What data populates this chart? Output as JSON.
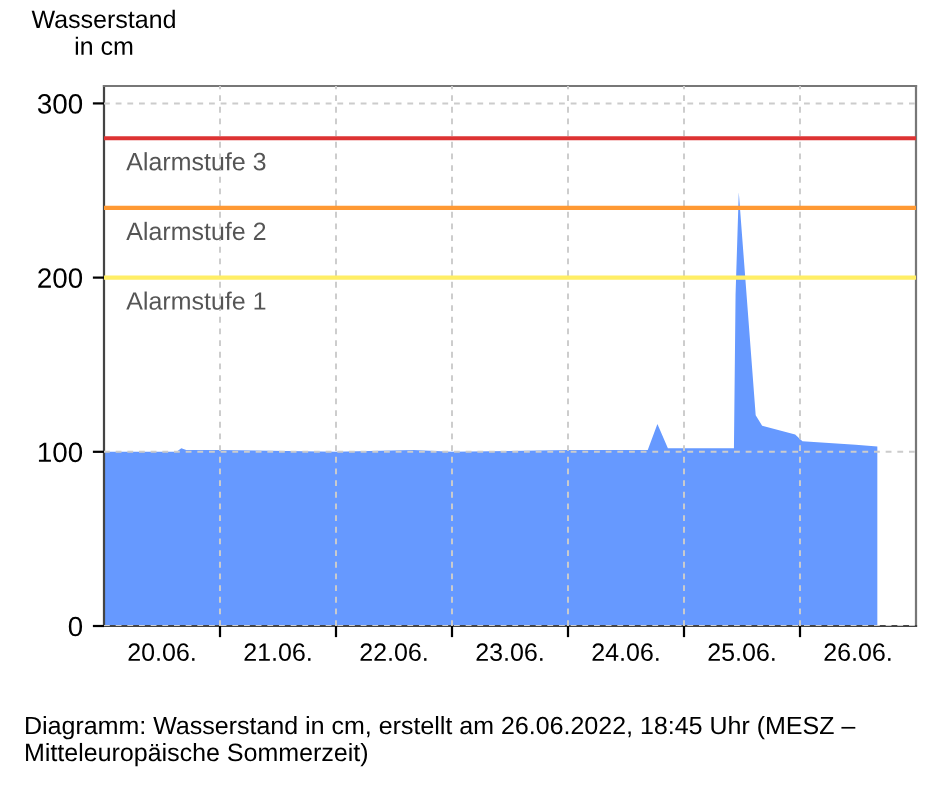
{
  "chart_data": {
    "type": "area",
    "ylabel": "Wasserstand\nin cm",
    "annotations": [
      "Diagramm: Wasserstand in cm, erstellt am 26.06.2022, 18:45 Uhr (MESZ – Mitteleuropäische Sommerzeit)"
    ],
    "x": [
      "2022-06-20T00:00",
      "2022-06-20T15:00",
      "2022-06-20T16:00",
      "2022-06-20T17:00",
      "2022-06-21T00:00",
      "2022-06-22T00:00",
      "2022-06-22T16:00",
      "2022-06-23T00:00",
      "2022-06-24T00:00",
      "2022-06-24T16:30",
      "2022-06-24T18:30",
      "2022-06-24T20:40",
      "2022-06-25T00:00",
      "2022-06-25T10:20",
      "2022-06-25T10:40",
      "2022-06-25T11:20",
      "2022-06-25T14:50",
      "2022-06-25T16:10",
      "2022-06-25T23:00",
      "2022-06-26T00:30",
      "2022-06-26T11:30",
      "2022-06-26T16:00"
    ],
    "series": [
      {
        "color": "#6699ff",
        "values": [
          100,
          100,
          102,
          101,
          101,
          100,
          101,
          100,
          101,
          101,
          116,
          102,
          102,
          102,
          190,
          249,
          121,
          115,
          110,
          106,
          104,
          103
        ]
      }
    ],
    "xlim": [
      "2022-06-20T00:00",
      "2022-06-27T00:00"
    ],
    "xticks": [
      {
        "value": "2022-06-20T12:00",
        "label": "20.06."
      },
      {
        "value": "2022-06-21T12:00",
        "label": "21.06."
      },
      {
        "value": "2022-06-22T12:00",
        "label": "22.06."
      },
      {
        "value": "2022-06-23T12:00",
        "label": "23.06."
      },
      {
        "value": "2022-06-24T12:00",
        "label": "24.06."
      },
      {
        "value": "2022-06-25T12:00",
        "label": "25.06."
      },
      {
        "value": "2022-06-26T12:00",
        "label": "26.06."
      }
    ],
    "ylim": [
      0,
      310
    ],
    "yticks": [
      0,
      100,
      200,
      300
    ],
    "grid": true,
    "ref_lines": [
      {
        "axis": "y",
        "value": 280,
        "label": "Alarmstufe 3",
        "color": "#dd3333"
      },
      {
        "axis": "y",
        "value": 240,
        "label": "Alarmstufe 2",
        "color": "#ff9933"
      },
      {
        "axis": "y",
        "value": 200,
        "label": "Alarmstufe 1",
        "color": "#ffee66"
      }
    ]
  }
}
